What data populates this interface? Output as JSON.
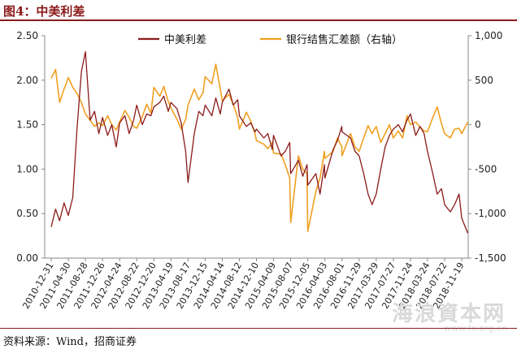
{
  "header": {
    "title": "图4：中美利差"
  },
  "footer": {
    "source": "资料来源：Wind，招商证券"
  },
  "watermark": {
    "text": "海浪資本网",
    "url": "www.fx.org.cn"
  },
  "colors": {
    "spread": "#8b1a1a",
    "fx_balance": "#f0a020",
    "axis": "#888888",
    "brand": "#8b1a1a"
  },
  "chart_data": {
    "type": "line",
    "title": "",
    "xlabel": "",
    "ylabel": "",
    "y_left": {
      "ylim": [
        0,
        2.5
      ],
      "ticks": [
        "0.00",
        "0.50",
        "1.00",
        "1.50",
        "2.00",
        "2.50"
      ]
    },
    "y_right": {
      "ylim": [
        -1500,
        1000
      ],
      "ticks": [
        "-1,500",
        "-1,000",
        "-500",
        "0",
        "500",
        "1,000"
      ]
    },
    "x_ticks": [
      "2010-12-31",
      "2011-04-30",
      "2011-08-28",
      "2011-12-26",
      "2012-04-24",
      "2012-08-22",
      "2012-12-20",
      "2013-04-19",
      "2013-08-17",
      "2013-12-15",
      "2014-04-14",
      "2014-08-12",
      "2014-12-10",
      "2015-04-09",
      "2015-08-07",
      "2015-12-05",
      "2016-04-03",
      "2016-08-01",
      "2016-11-29",
      "2017-03-29",
      "2017-07-27",
      "2017-11-24",
      "2018-03-24",
      "2018-07-22",
      "2018-11-19"
    ],
    "legend": {
      "position": "top"
    },
    "grid": false,
    "series": [
      {
        "name": "中美利差",
        "axis": "left",
        "color": "#8b1a1a",
        "x": [
          "2010-12-31",
          "2011-01-31",
          "2011-02-28",
          "2011-03-31",
          "2011-04-30",
          "2011-05-31",
          "2011-06-30",
          "2011-07-31",
          "2011-08-28",
          "2011-09-30",
          "2011-10-31",
          "2011-11-30",
          "2011-12-26",
          "2012-01-31",
          "2012-02-29",
          "2012-03-31",
          "2012-04-24",
          "2012-05-31",
          "2012-06-30",
          "2012-07-31",
          "2012-08-22",
          "2012-09-30",
          "2012-10-31",
          "2012-11-30",
          "2012-12-20",
          "2013-01-31",
          "2013-02-28",
          "2013-03-31",
          "2013-04-19",
          "2013-05-31",
          "2013-06-30",
          "2013-07-31",
          "2013-08-17",
          "2013-09-30",
          "2013-10-31",
          "2013-11-30",
          "2013-12-15",
          "2014-01-31",
          "2014-02-28",
          "2014-03-31",
          "2014-04-14",
          "2014-05-31",
          "2014-06-30",
          "2014-07-31",
          "2014-08-12",
          "2014-09-30",
          "2014-10-31",
          "2014-11-30",
          "2014-12-10",
          "2015-01-31",
          "2015-02-28",
          "2015-03-31",
          "2015-04-09",
          "2015-05-31",
          "2015-06-30",
          "2015-07-31",
          "2015-08-07",
          "2015-09-30",
          "2015-10-31",
          "2015-11-30",
          "2015-12-05",
          "2016-01-31",
          "2016-02-29",
          "2016-03-31",
          "2016-04-03",
          "2016-05-31",
          "2016-06-30",
          "2016-07-31",
          "2016-08-01",
          "2016-09-30",
          "2016-10-31",
          "2016-11-29",
          "2016-12-31",
          "2017-01-31",
          "2017-02-28",
          "2017-03-29",
          "2017-04-30",
          "2017-05-31",
          "2017-06-30",
          "2017-07-27",
          "2017-08-31",
          "2017-09-30",
          "2017-10-31",
          "2017-11-24",
          "2017-12-31",
          "2018-01-31",
          "2018-02-28",
          "2018-03-24",
          "2018-04-30",
          "2018-05-31",
          "2018-06-30",
          "2018-07-22",
          "2018-08-31",
          "2018-09-30",
          "2018-10-31",
          "2018-11-19",
          "2018-12-31"
        ],
        "values": [
          0.35,
          0.55,
          0.42,
          0.62,
          0.48,
          0.68,
          1.45,
          2.1,
          2.32,
          1.55,
          1.65,
          1.4,
          1.58,
          1.38,
          1.5,
          1.25,
          1.52,
          1.6,
          1.4,
          1.55,
          1.72,
          1.5,
          1.62,
          1.6,
          1.7,
          1.75,
          1.82,
          1.65,
          1.75,
          1.68,
          1.52,
          1.2,
          0.85,
          1.4,
          1.65,
          1.6,
          1.72,
          1.6,
          1.8,
          1.62,
          1.75,
          1.9,
          1.72,
          1.78,
          1.6,
          1.48,
          1.52,
          1.42,
          1.45,
          1.35,
          1.4,
          1.22,
          1.38,
          1.15,
          1.2,
          1.3,
          0.95,
          1.1,
          0.92,
          1.05,
          0.82,
          0.95,
          0.72,
          1.05,
          0.9,
          1.22,
          1.32,
          1.48,
          1.42,
          1.35,
          1.2,
          1.15,
          0.95,
          0.72,
          0.6,
          0.72,
          1.0,
          1.25,
          1.38,
          1.45,
          1.5,
          1.42,
          1.55,
          1.62,
          1.38,
          1.48,
          1.4,
          1.2,
          0.95,
          0.72,
          0.78,
          0.6,
          0.52,
          0.6,
          0.72,
          0.45,
          0.28
        ]
      },
      {
        "name": "银行结售汇差额（右轴）",
        "axis": "right",
        "color": "#f0a020",
        "x": [
          "2010-12-31",
          "2011-01-31",
          "2011-02-28",
          "2011-03-31",
          "2011-04-30",
          "2011-05-31",
          "2011-06-30",
          "2011-07-31",
          "2011-08-28",
          "2011-09-30",
          "2011-10-31",
          "2011-11-30",
          "2011-12-26",
          "2012-01-31",
          "2012-02-29",
          "2012-03-31",
          "2012-04-24",
          "2012-05-31",
          "2012-06-30",
          "2012-07-31",
          "2012-08-22",
          "2012-09-30",
          "2012-10-31",
          "2012-11-30",
          "2012-12-20",
          "2013-01-31",
          "2013-02-28",
          "2013-03-31",
          "2013-04-19",
          "2013-05-31",
          "2013-06-30",
          "2013-07-31",
          "2013-08-17",
          "2013-09-30",
          "2013-10-31",
          "2013-11-30",
          "2013-12-15",
          "2014-01-31",
          "2014-02-28",
          "2014-03-31",
          "2014-04-14",
          "2014-05-31",
          "2014-06-30",
          "2014-07-31",
          "2014-08-12",
          "2014-09-30",
          "2014-10-31",
          "2014-11-30",
          "2014-12-10",
          "2015-01-31",
          "2015-02-28",
          "2015-03-31",
          "2015-04-09",
          "2015-05-31",
          "2015-06-30",
          "2015-07-31",
          "2015-08-07",
          "2015-09-30",
          "2015-10-31",
          "2015-11-30",
          "2015-12-05",
          "2016-01-31",
          "2016-02-29",
          "2016-03-31",
          "2016-04-03",
          "2016-05-31",
          "2016-06-30",
          "2016-07-31",
          "2016-08-01",
          "2016-09-30",
          "2016-10-31",
          "2016-11-29",
          "2016-12-31",
          "2017-01-31",
          "2017-02-28",
          "2017-03-29",
          "2017-04-30",
          "2017-05-31",
          "2017-06-30",
          "2017-07-27",
          "2017-08-31",
          "2017-09-30",
          "2017-10-31",
          "2017-11-24",
          "2017-12-31",
          "2018-01-31",
          "2018-02-28",
          "2018-03-24",
          "2018-04-30",
          "2018-05-31",
          "2018-06-30",
          "2018-07-22",
          "2018-08-31",
          "2018-09-30",
          "2018-10-31",
          "2018-11-19",
          "2018-12-31"
        ],
        "values": [
          520,
          620,
          250,
          400,
          530,
          420,
          350,
          250,
          120,
          50,
          -20,
          20,
          -10,
          100,
          0,
          -60,
          30,
          160,
          80,
          -20,
          -40,
          90,
          230,
          130,
          420,
          320,
          430,
          260,
          190,
          60,
          -50,
          60,
          220,
          400,
          280,
          360,
          540,
          460,
          680,
          400,
          270,
          340,
          230,
          80,
          -50,
          140,
          40,
          -100,
          -180,
          -220,
          -270,
          -200,
          -320,
          -330,
          -450,
          -600,
          -1100,
          -350,
          -500,
          -550,
          -1200,
          -750,
          -600,
          -300,
          -380,
          -300,
          -150,
          -250,
          -350,
          -100,
          -250,
          -300,
          -150,
          -10,
          -100,
          -20,
          -200,
          -100,
          0,
          -150,
          -70,
          -150,
          100,
          0,
          30,
          -30,
          -70,
          -80,
          80,
          200,
          10,
          -100,
          -150,
          -50,
          -40,
          -100,
          30
        ]
      }
    ]
  }
}
